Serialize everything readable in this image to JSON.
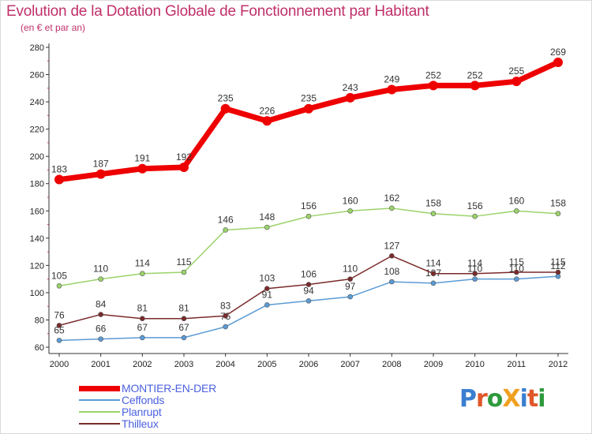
{
  "title": "Evolution de la Dotation Globale de Fonctionnement par Habitant",
  "subtitle": "(en € et par an)",
  "logo": {
    "text": "ProXiti",
    "colors": [
      "#3a7fd0",
      "#e0572a",
      "#2e9a3c",
      "#f0a020",
      "#3a7fd0",
      "#e0572a",
      "#2e9a3c"
    ]
  },
  "colors": {
    "title": "#c0306a",
    "legend_text": "#4c62e0"
  },
  "chart_data": {
    "type": "line",
    "x": [
      "2000",
      "2001",
      "2002",
      "2003",
      "2004",
      "2005",
      "2006",
      "2007",
      "2008",
      "2009",
      "2010",
      "2011",
      "2012"
    ],
    "ylim": [
      60,
      280
    ],
    "yticks": [
      "60",
      "80",
      "100",
      "120",
      "140",
      "160",
      "180",
      "200",
      "220",
      "240",
      "260",
      "280"
    ],
    "grid": false,
    "legend_position": "bottom-left",
    "series": [
      {
        "name": "MONTIER-EN-DER",
        "color": "#ee0000",
        "width": 7,
        "values": [
          183,
          187,
          191,
          192,
          235,
          226,
          235,
          243,
          249,
          252,
          252,
          255,
          269
        ],
        "labels": [
          "183",
          "187",
          "191",
          "192",
          "235",
          "226",
          "235",
          "243",
          "249",
          "252",
          "252",
          "255",
          "269"
        ]
      },
      {
        "name": "Ceffonds",
        "color": "#5b9bd5",
        "width": 1.5,
        "values": [
          65,
          66,
          67,
          67,
          75,
          91,
          94,
          97,
          108,
          107,
          110,
          110,
          112
        ],
        "labels": [
          "65",
          "66",
          "67",
          "67",
          "75",
          "91",
          "94",
          "97",
          "108",
          "107",
          "110",
          "110",
          "112"
        ]
      },
      {
        "name": "Planrupt",
        "color": "#9bd36b",
        "width": 1.5,
        "values": [
          105,
          110,
          114,
          115,
          146,
          148,
          156,
          160,
          162,
          158,
          156,
          160,
          158
        ],
        "labels": [
          "105",
          "110",
          "114",
          "115",
          "146",
          "148",
          "156",
          "160",
          "162",
          "158",
          "156",
          "160",
          "158"
        ]
      },
      {
        "name": "Thilleux",
        "color": "#7a2a2a",
        "width": 1.5,
        "values": [
          76,
          84,
          81,
          81,
          83,
          103,
          106,
          110,
          127,
          114,
          114,
          115,
          115
        ],
        "labels": [
          "76",
          "84",
          "81",
          "81",
          "83",
          "103",
          "106",
          "110",
          "127",
          "114",
          "114",
          "115",
          "115"
        ]
      }
    ]
  }
}
